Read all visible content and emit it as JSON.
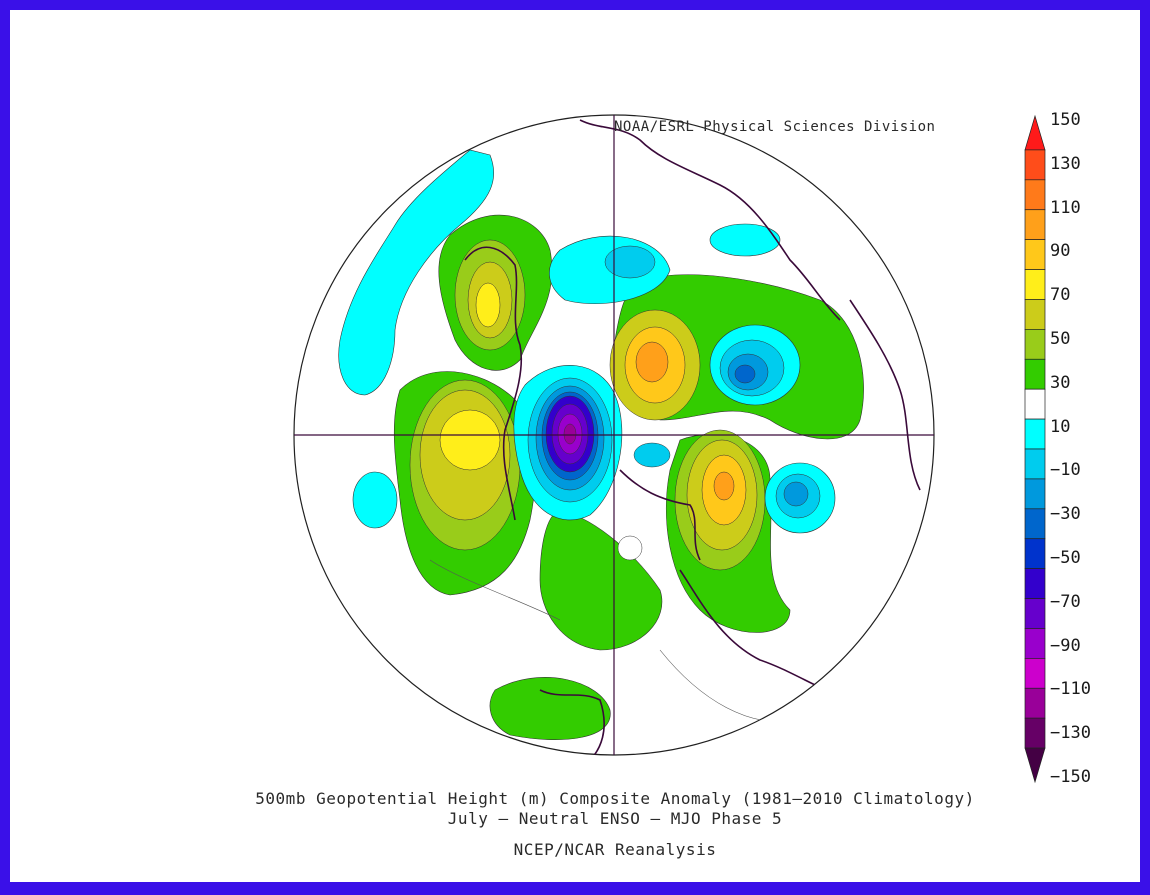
{
  "map": {
    "credit": "NOAA/ESRL Physical Sciences Division",
    "title_line1": "500mb Geopotential Height (m) Composite Anomaly (1981–2010 Climatology)",
    "title_line2": "July – Neutral ENSO – MJO Phase 5",
    "title_line3": "NCEP/NCAR Reanalysis",
    "projection": "north polar stereographic"
  },
  "colorbar": {
    "labels": [
      "150",
      "130",
      "110",
      "90",
      "70",
      "50",
      "30",
      "10",
      "−10",
      "−30",
      "−50",
      "−70",
      "−90",
      "−110",
      "−130",
      "−150"
    ],
    "colors": [
      "#ff1a1a",
      "#ff4d1a",
      "#ff7a1a",
      "#ffa01a",
      "#ffc81a",
      "#ffee1a",
      "#cccc1a",
      "#99cc1a",
      "#33cc00",
      "#ffffff",
      "#00ffff",
      "#00ccee",
      "#0099dd",
      "#0066cc",
      "#0033cc",
      "#3300cc",
      "#6600cc",
      "#9900cc",
      "#cc00cc",
      "#990099",
      "#660066",
      "#440044"
    ]
  }
}
